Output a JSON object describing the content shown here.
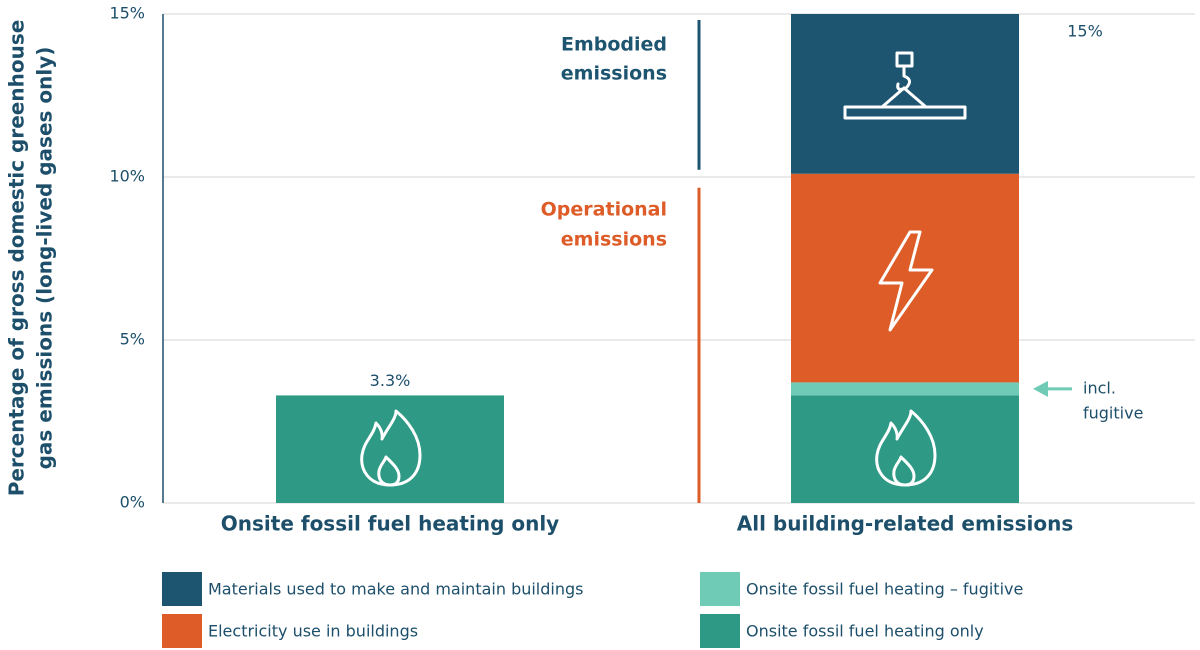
{
  "chart_data": {
    "type": "stacked-bar",
    "y_label": [
      "Percentage of gross domestic greenhouse",
      "gas emissions (long-lived gases only)"
    ],
    "categories": [
      "Onsite fossil fuel heating only",
      "All building-related emissions"
    ],
    "series": [
      {
        "name": "Materials used to make and maintain buildings",
        "color": "#1d5470",
        "values": [
          null,
          4.9
        ]
      },
      {
        "name": "Electricity use in buildings",
        "color": "#dd5c27",
        "values": [
          null,
          6.4
        ]
      },
      {
        "name": "Onsite fossil fuel heating – fugitive",
        "color": "#6fcab6",
        "values": [
          null,
          0.4
        ]
      },
      {
        "name": "Onsite fossil fuel heating only",
        "color": "#2e9a85",
        "values": [
          3.3,
          3.3
        ]
      }
    ],
    "totals": [
      3.3,
      15
    ],
    "total_labels": [
      "3.3%",
      "15%"
    ],
    "ylim": [
      0,
      15
    ],
    "yticks": [
      {
        "value": 0,
        "label": "0%"
      },
      {
        "value": 5,
        "label": "5%"
      },
      {
        "value": 10,
        "label": "10%"
      },
      {
        "value": 15,
        "label": "15%"
      }
    ],
    "grid": true,
    "annotations": [
      {
        "text": [
          "Embodied",
          "emissions"
        ],
        "color": "#1d5470"
      },
      {
        "text": [
          "Operational",
          "emissions"
        ],
        "color": "#dd5c27"
      },
      {
        "text": [
          "incl.",
          "fugitive"
        ],
        "color": "#1d4f6b"
      }
    ]
  }
}
